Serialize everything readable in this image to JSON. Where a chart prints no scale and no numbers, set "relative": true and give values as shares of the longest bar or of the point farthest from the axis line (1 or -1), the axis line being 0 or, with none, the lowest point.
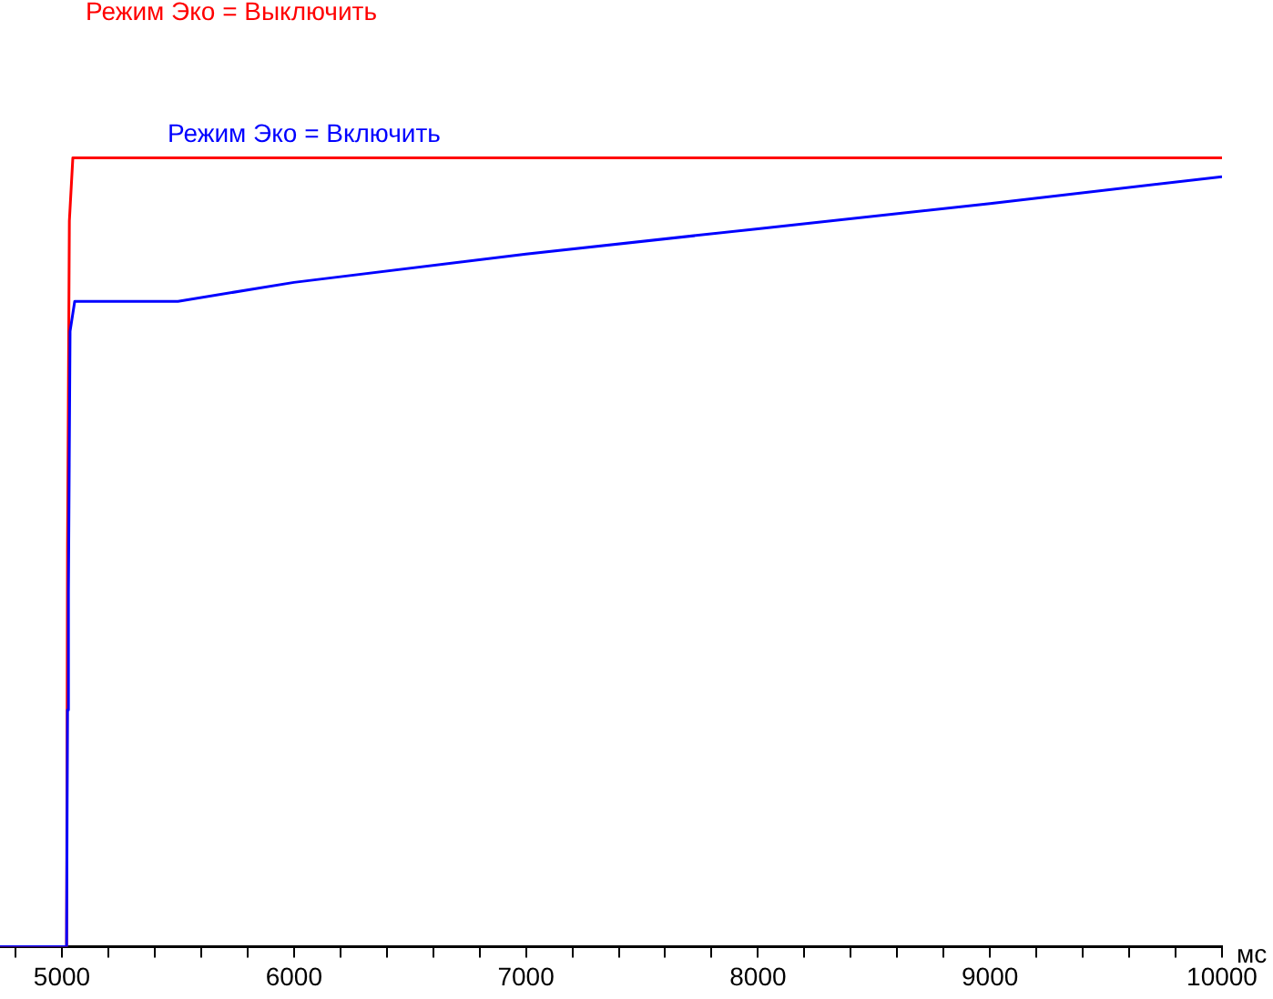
{
  "chart_data": {
    "type": "line",
    "relative": true,
    "xlabel": "мс",
    "legend": false,
    "grid": false,
    "marker": "none",
    "line_style": "solid",
    "xlim": [
      4733,
      10000
    ],
    "xticks": [
      {
        "value": 4800,
        "label": null
      },
      5000,
      {
        "value": 5200,
        "label": null
      },
      {
        "value": 5400,
        "label": null
      },
      {
        "value": 5600,
        "label": null
      },
      {
        "value": 5800,
        "label": null
      },
      6000,
      {
        "value": 6200,
        "label": null
      },
      {
        "value": 6400,
        "label": null
      },
      {
        "value": 6600,
        "label": null
      },
      {
        "value": 6800,
        "label": null
      },
      7000,
      {
        "value": 7200,
        "label": null
      },
      {
        "value": 7400,
        "label": null
      },
      {
        "value": 7600,
        "label": null
      },
      {
        "value": 7800,
        "label": null
      },
      8000,
      {
        "value": 8200,
        "label": null
      },
      {
        "value": 8400,
        "label": null
      },
      {
        "value": 8600,
        "label": null
      },
      {
        "value": 8800,
        "label": null
      },
      9000,
      {
        "value": 9200,
        "label": null
      },
      {
        "value": 9400,
        "label": null
      },
      {
        "value": 9600,
        "label": null
      },
      {
        "value": 9800,
        "label": null
      },
      10000
    ],
    "series": [
      {
        "name": "Режим Эко = Включить",
        "color": "#0000ff",
        "x": [
          4733,
          5020,
          5024,
          5028,
          5035,
          5055,
          5500,
          6000,
          7000,
          8000,
          9000,
          10000
        ],
        "values": [
          0,
          0,
          0.3,
          0.45,
          0.78,
          0.818,
          0.818,
          0.842,
          0.878,
          0.91,
          0.942,
          0.976
        ]
      },
      {
        "name": "Режим Эко = Выключить",
        "color": "#ff0000",
        "x": [
          4733,
          5020,
          5024,
          5032,
          5047,
          10000
        ],
        "values": [
          0,
          0,
          0.5,
          0.92,
          1,
          1
        ]
      }
    ]
  }
}
